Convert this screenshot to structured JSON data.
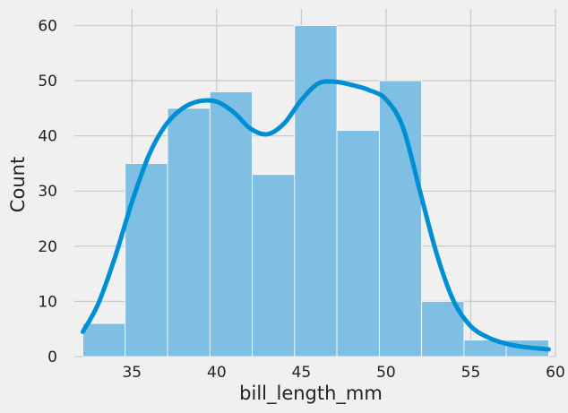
{
  "chart_data": {
    "type": "bar",
    "xlabel": "bill_length_mm",
    "ylabel": "Count",
    "xlim": [
      31.6,
      60.0
    ],
    "ylim": [
      0,
      63
    ],
    "xticks": [
      35,
      40,
      45,
      50,
      55,
      60
    ],
    "yticks": [
      0,
      10,
      20,
      30,
      40,
      50,
      60
    ],
    "grid": true,
    "bins": [
      {
        "x0": 32.1,
        "x1": 34.6,
        "count": 6
      },
      {
        "x0": 34.6,
        "x1": 37.1,
        "count": 35
      },
      {
        "x0": 37.1,
        "x1": 39.6,
        "count": 45
      },
      {
        "x0": 39.6,
        "x1": 42.1,
        "count": 48
      },
      {
        "x0": 42.1,
        "x1": 44.6,
        "count": 33
      },
      {
        "x0": 44.6,
        "x1": 47.1,
        "count": 60
      },
      {
        "x0": 47.1,
        "x1": 49.6,
        "count": 41
      },
      {
        "x0": 49.6,
        "x1": 52.1,
        "count": 50
      },
      {
        "x0": 52.1,
        "x1": 54.6,
        "count": 10
      },
      {
        "x0": 54.6,
        "x1": 57.1,
        "count": 3
      },
      {
        "x0": 57.1,
        "x1": 59.6,
        "count": 3
      }
    ],
    "kde": {
      "x": [
        32.1,
        33.0,
        34.0,
        35.0,
        36.0,
        37.0,
        38.0,
        39.0,
        40.0,
        41.0,
        42.0,
        43.0,
        44.0,
        45.0,
        46.0,
        47.0,
        48.0,
        49.0,
        50.0,
        51.0,
        52.0,
        53.0,
        54.0,
        55.0,
        56.0,
        57.0,
        58.0,
        59.6
      ],
      "y": [
        4.5,
        9.5,
        18.0,
        28.0,
        36.5,
        42.0,
        45.0,
        46.3,
        46.2,
        44.3,
        41.3,
        40.3,
        42.3,
        46.5,
        49.5,
        49.8,
        49.2,
        48.3,
        46.6,
        41.5,
        30.0,
        18.5,
        10.0,
        5.5,
        3.5,
        2.4,
        1.8,
        1.3
      ]
    },
    "colors": {
      "bar": "#7fbfe3",
      "kde": "#008fd5",
      "background": "#f0f0f0",
      "grid": "#cbcbcb"
    }
  }
}
